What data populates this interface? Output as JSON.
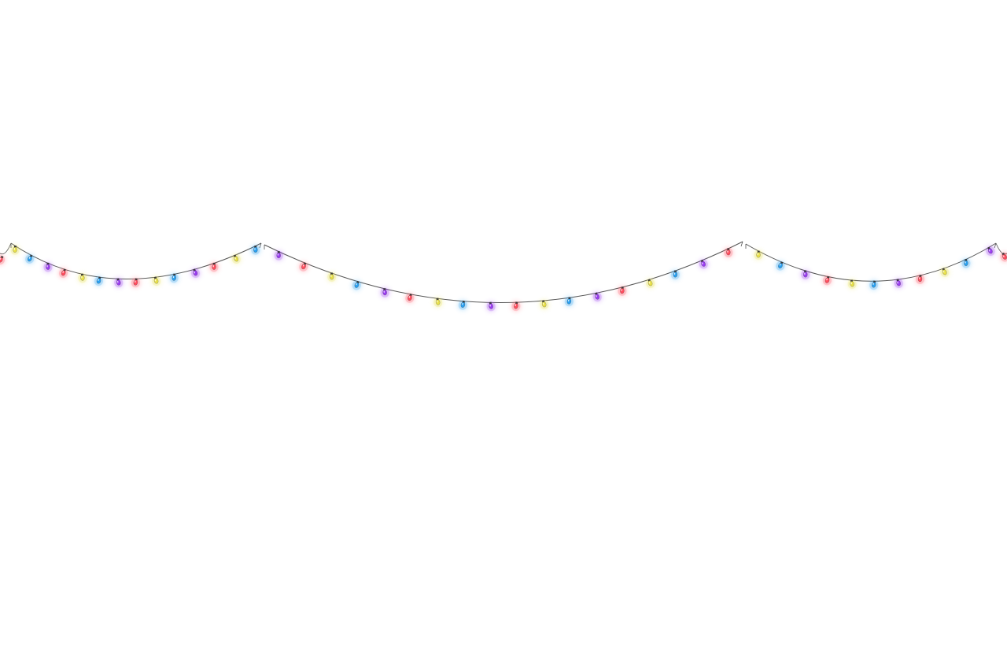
{
  "scene": {
    "background": "#ffffff",
    "wire_color": "#555555",
    "bulb_colors": {
      "red": "#ff4d5e",
      "yellow": "#e8e04a",
      "blue": "#2aa0f0",
      "purple": "#9a3cf0"
    },
    "strands": [
      {
        "name": "left-strand",
        "bulbs": [
          "yellow",
          "blue",
          "purple",
          "red",
          "yellow",
          "blue",
          "purple",
          "red",
          "yellow",
          "blue",
          "purple",
          "red",
          "yellow",
          "blue"
        ]
      },
      {
        "name": "middle-strand",
        "bulbs": [
          "purple",
          "red",
          "yellow",
          "blue",
          "purple",
          "red",
          "yellow",
          "blue",
          "purple",
          "red",
          "yellow",
          "blue",
          "purple",
          "red",
          "yellow",
          "blue",
          "purple",
          "red"
        ]
      },
      {
        "name": "right-strand",
        "bulbs": [
          "yellow",
          "blue",
          "purple",
          "red",
          "yellow",
          "blue",
          "purple",
          "red",
          "yellow",
          "blue",
          "purple"
        ]
      }
    ]
  }
}
